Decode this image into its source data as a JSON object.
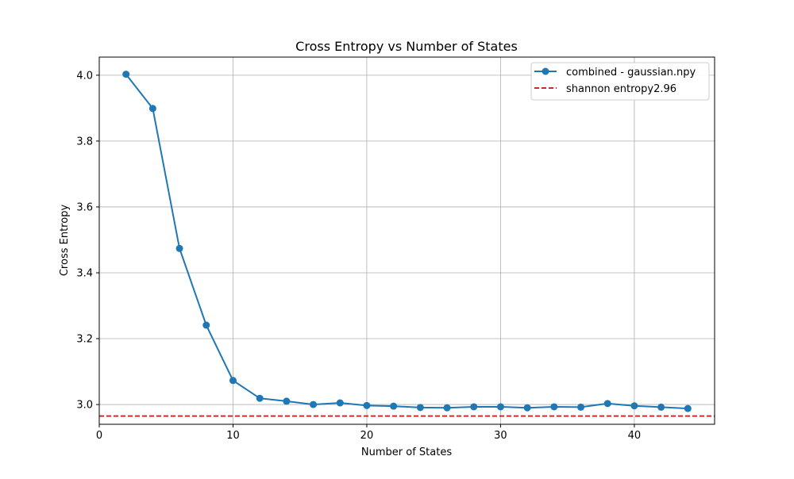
{
  "chart_data": {
    "type": "line",
    "title": "Cross Entropy vs Number of States",
    "xlabel": "Number of States",
    "ylabel": "Cross Entropy",
    "xlim": [
      0,
      46
    ],
    "ylim": [
      2.94,
      4.055
    ],
    "xticks": [
      0,
      10,
      20,
      30,
      40
    ],
    "yticks": [
      3.0,
      3.2,
      3.4,
      3.6,
      3.8,
      4.0
    ],
    "xtick_labels": [
      "0",
      "10",
      "20",
      "30",
      "40"
    ],
    "ytick_labels": [
      "3.0",
      "3.2",
      "3.4",
      "3.6",
      "3.8",
      "4.0"
    ],
    "grid": true,
    "legend_position": "top-right",
    "series": [
      {
        "name": "combined - gaussian.npy",
        "color": "#1f77b4",
        "style": "solid-with-circle-markers",
        "x": [
          2,
          4,
          6,
          8,
          10,
          12,
          14,
          16,
          18,
          20,
          22,
          24,
          26,
          28,
          30,
          32,
          34,
          36,
          38,
          40,
          42,
          44
        ],
        "y": [
          4.003,
          3.899,
          3.474,
          3.241,
          3.073,
          3.019,
          3.01,
          3.0,
          3.005,
          2.997,
          2.995,
          2.991,
          2.99,
          2.993,
          2.993,
          2.99,
          2.993,
          2.992,
          3.003,
          2.996,
          2.992,
          2.988
        ]
      }
    ],
    "reference_lines": [
      {
        "name": "shannon entropy2.96",
        "color": "#d62728",
        "style": "dashed",
        "y": 2.965
      }
    ]
  }
}
